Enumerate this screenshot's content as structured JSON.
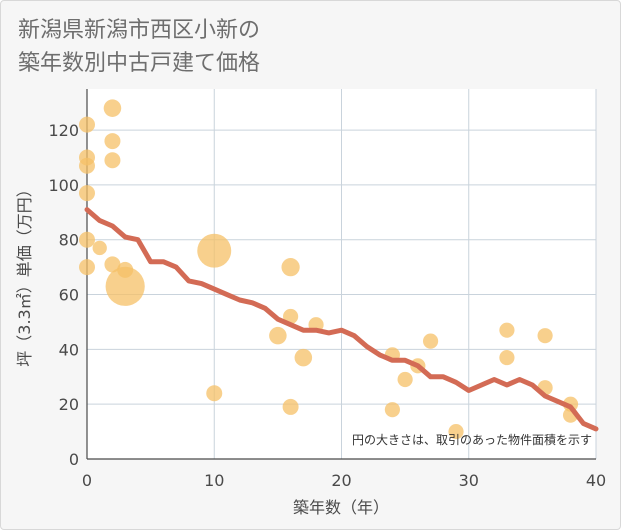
{
  "title_line1": "新潟県新潟市西区小新の",
  "title_line2": "築年数別中古戸建て価格",
  "chart_data": {
    "type": "scatter",
    "title": "新潟県新潟市西区小新の築年数別中古戸建て価格",
    "xlabel": "築年数（年）",
    "ylabel": "坪（3.3㎡）単価（万円）",
    "xlim": [
      0,
      40
    ],
    "ylim": [
      0,
      135
    ],
    "xticks": [
      0,
      10,
      20,
      30,
      40
    ],
    "yticks": [
      0,
      20,
      40,
      60,
      80,
      100,
      120
    ],
    "grid": true,
    "annotation": "円の大きさは、取引のあった物件面積を示す",
    "bubble_color": "#f5c067",
    "line_color": "#d36b55",
    "bubbles": [
      {
        "x": 0,
        "y": 122,
        "size": 1
      },
      {
        "x": 0,
        "y": 110,
        "size": 1
      },
      {
        "x": 0,
        "y": 107,
        "size": 1
      },
      {
        "x": 0,
        "y": 97,
        "size": 1
      },
      {
        "x": 0,
        "y": 80,
        "size": 1
      },
      {
        "x": 0,
        "y": 70,
        "size": 1
      },
      {
        "x": 1,
        "y": 77,
        "size": 0.8
      },
      {
        "x": 2,
        "y": 128,
        "size": 1.2
      },
      {
        "x": 2,
        "y": 116,
        "size": 1
      },
      {
        "x": 2,
        "y": 109,
        "size": 1
      },
      {
        "x": 2,
        "y": 71,
        "size": 1
      },
      {
        "x": 3,
        "y": 69,
        "size": 1
      },
      {
        "x": 3,
        "y": 63,
        "size": 6
      },
      {
        "x": 10,
        "y": 76,
        "size": 4.5
      },
      {
        "x": 10,
        "y": 24,
        "size": 1
      },
      {
        "x": 15,
        "y": 45,
        "size": 1.2
      },
      {
        "x": 16,
        "y": 70,
        "size": 1.3
      },
      {
        "x": 16,
        "y": 52,
        "size": 0.9
      },
      {
        "x": 16,
        "y": 19,
        "size": 1
      },
      {
        "x": 17,
        "y": 37,
        "size": 1.2
      },
      {
        "x": 18,
        "y": 49,
        "size": 0.9
      },
      {
        "x": 24,
        "y": 38,
        "size": 0.9
      },
      {
        "x": 24,
        "y": 18,
        "size": 0.9
      },
      {
        "x": 25,
        "y": 29,
        "size": 0.9
      },
      {
        "x": 26,
        "y": 34,
        "size": 0.9
      },
      {
        "x": 27,
        "y": 43,
        "size": 0.9
      },
      {
        "x": 29,
        "y": 10,
        "size": 0.9
      },
      {
        "x": 33,
        "y": 47,
        "size": 0.9
      },
      {
        "x": 33,
        "y": 37,
        "size": 0.9
      },
      {
        "x": 36,
        "y": 45,
        "size": 0.9
      },
      {
        "x": 36,
        "y": 26,
        "size": 0.9
      },
      {
        "x": 38,
        "y": 20,
        "size": 0.9
      },
      {
        "x": 38,
        "y": 16,
        "size": 0.9
      }
    ],
    "trend": {
      "x": [
        0,
        1,
        2,
        3,
        4,
        5,
        6,
        7,
        8,
        9,
        10,
        11,
        12,
        13,
        14,
        15,
        16,
        17,
        18,
        19,
        20,
        21,
        22,
        23,
        24,
        25,
        26,
        27,
        28,
        29,
        30,
        31,
        32,
        33,
        34,
        35,
        36,
        37,
        38,
        39,
        40
      ],
      "y": [
        91,
        87,
        85,
        81,
        80,
        72,
        72,
        70,
        65,
        64,
        62,
        60,
        58,
        57,
        55,
        51,
        49,
        47,
        47,
        46,
        47,
        45,
        41,
        38,
        36,
        36,
        34,
        30,
        30,
        28,
        25,
        27,
        29,
        27,
        29,
        27,
        23,
        21,
        19,
        13,
        11
      ]
    }
  }
}
